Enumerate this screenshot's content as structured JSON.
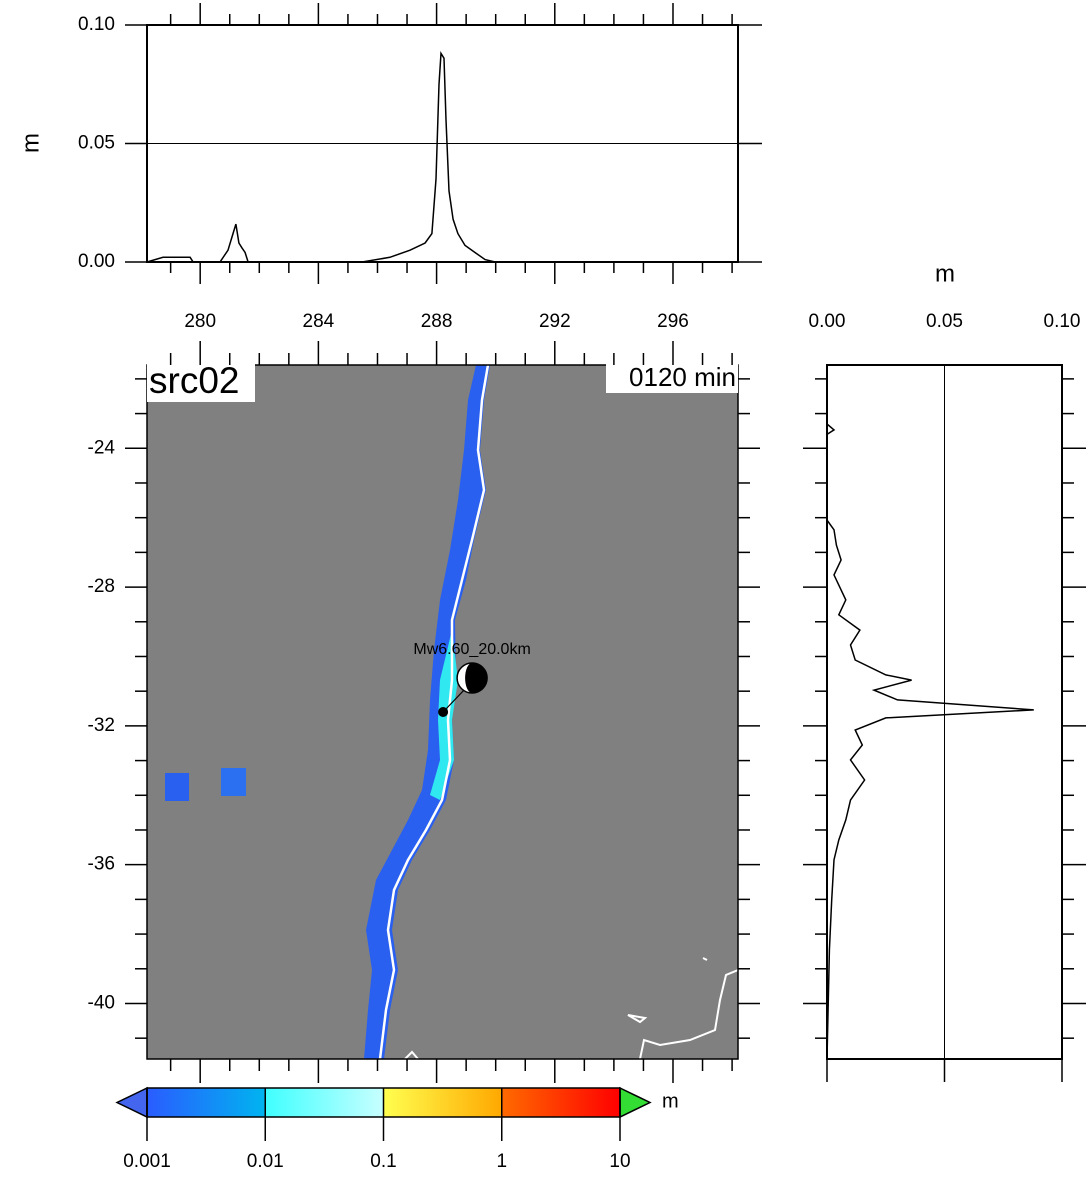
{
  "chart_data": [
    {
      "type": "line",
      "orientation": "horizontal",
      "ylabel": "m",
      "xlim": [
        278.2,
        298.2
      ],
      "xticks": [
        280,
        284,
        288,
        292,
        296
      ],
      "xminorticks": [
        279,
        281,
        282,
        283,
        285,
        286,
        287,
        289,
        290,
        291,
        293,
        294,
        295,
        297,
        298
      ],
      "ylim": [
        0,
        0.1
      ],
      "yticks": [
        {
          "value": 0,
          "label": "0.00"
        },
        {
          "value": 0.05,
          "label": "0.05"
        },
        {
          "value": 0.1,
          "label": "0.10"
        }
      ],
      "grid": true,
      "color": "#000000",
      "x": [
        278.2,
        278.74,
        279.66,
        279.76,
        280.67,
        280.94,
        281.11,
        281.21,
        281.31,
        281.41,
        281.52,
        281.62,
        285.48,
        286.42,
        287.1,
        287.61,
        287.84,
        287.98,
        288.08,
        288.15,
        288.25,
        288.32,
        288.42,
        288.56,
        288.72,
        288.96,
        289.3,
        289.64,
        289.98,
        298.2
      ],
      "values": [
        0,
        0.002,
        0.002,
        0,
        0,
        0.005,
        0.012,
        0.016,
        0.008,
        0.006,
        0.004,
        0,
        0,
        0.002,
        0.005,
        0.008,
        0.012,
        0.035,
        0.075,
        0.088,
        0.086,
        0.06,
        0.03,
        0.018,
        0.012,
        0.007,
        0.004,
        0.001,
        0,
        0
      ]
    },
    {
      "type": "line",
      "orientation": "vertical",
      "xlabel": "m",
      "vlim": [
        0,
        0.1
      ],
      "vticks": [
        {
          "value": 0,
          "label": "0.00"
        },
        {
          "value": 0.05,
          "label": "0.05"
        },
        {
          "value": 0.1,
          "label": "0.10"
        }
      ],
      "ylim": [
        -41.6,
        -21.6
      ],
      "yticks": [
        -24,
        -28,
        -32,
        -36,
        -40
      ],
      "yminorticks": [
        -22,
        -23,
        -25,
        -26,
        -27,
        -29,
        -30,
        -31,
        -33,
        -34,
        -35,
        -37,
        -38,
        -39,
        -41
      ],
      "grid": true,
      "color": "#000000",
      "x": [
        -21.6,
        -23.3,
        -23.47,
        -23.6,
        -26.07,
        -26.35,
        -26.79,
        -27.22,
        -27.65,
        -28.37,
        -28.8,
        -29.24,
        -29.67,
        -30.1,
        -30.53,
        -30.68,
        -30.97,
        -31.25,
        -31.54,
        -31.77,
        -32.12,
        -32.55,
        -32.98,
        -33.56,
        -34.14,
        -34.71,
        -35.29,
        -35.86,
        -37.02,
        -38.46,
        -41.6
      ],
      "values": [
        0,
        0,
        0.003,
        0,
        0,
        0.003,
        0.004,
        0.006,
        0.003,
        0.008,
        0.005,
        0.014,
        0.01,
        0.012,
        0.025,
        0.036,
        0.02,
        0.03,
        0.088,
        0.025,
        0.012,
        0.015,
        0.01,
        0.016,
        0.01,
        0.008,
        0.005,
        0.003,
        0.002,
        0.001,
        0
      ]
    },
    {
      "type": "map",
      "title": "src02",
      "time_label": "0120 min",
      "xlim": [
        278.2,
        298.2
      ],
      "xticks": [
        280,
        284,
        288,
        292,
        296
      ],
      "xminorticks": [
        279,
        281,
        282,
        283,
        285,
        286,
        287,
        289,
        290,
        291,
        293,
        294,
        295,
        297,
        298
      ],
      "ylim": [
        -41.6,
        -21.6
      ],
      "yticks": [
        -24,
        -28,
        -32,
        -36,
        -40
      ],
      "yminorticks": [
        -22,
        -23,
        -25,
        -26,
        -27,
        -29,
        -30,
        -31,
        -33,
        -34,
        -35,
        -37,
        -38,
        -39,
        -41
      ],
      "source_label": "Mw6.60_20.0km",
      "epicenter": [
        288.22,
        -31.6
      ],
      "colorbar": {
        "label": "m",
        "ticks": [
          0.001,
          0.01,
          0.1,
          1,
          10
        ],
        "colors": [
          "#2a5cff",
          "#00b4f0",
          "#40ffff",
          "#c8ffff",
          "#ffff50",
          "#ffa800",
          "#ff6a00",
          "#ff0000"
        ],
        "under_color": "#4466ee",
        "over_color": "#33dd33"
      }
    }
  ]
}
